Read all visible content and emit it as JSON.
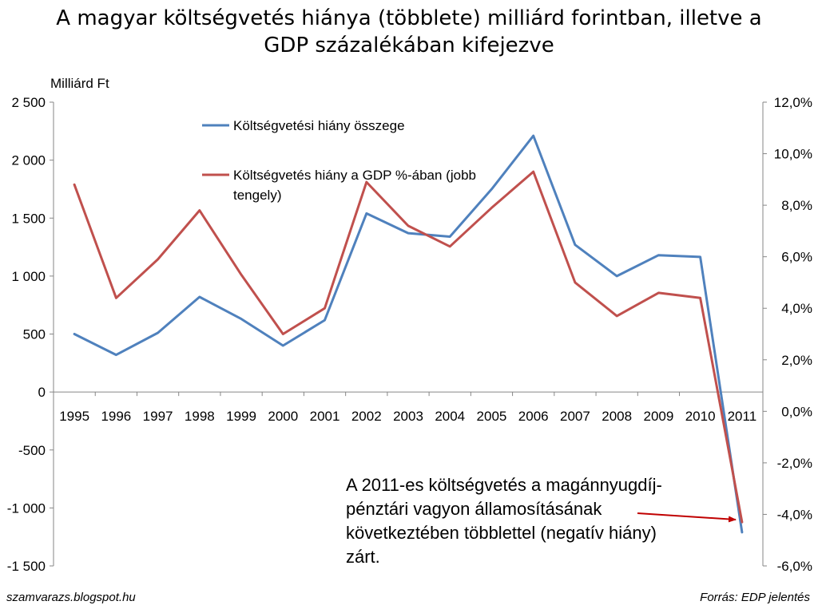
{
  "title": {
    "line1": "A magyar költségvetés hiánya (többlete) milliárd forintban, illetve a",
    "line2": "GDP százalékában kifejezve"
  },
  "footer": {
    "left": "szamvarazs.blogspot.hu",
    "right": "Forrás: EDP jelentés"
  },
  "annotation": {
    "lines": [
      "A 2011-es költségvetés a magánnyugdíj-",
      "pénztári vagyon államosításának",
      "következtében többlettel (negatív hiány)",
      "zárt."
    ]
  },
  "colors": {
    "series_blue": "#4F81BD",
    "series_red": "#C0504D",
    "arrow": "#C00000",
    "axis": "#868686"
  },
  "chart_data": {
    "type": "line",
    "categories": [
      "1995",
      "1996",
      "1997",
      "1998",
      "1999",
      "2000",
      "2001",
      "2002",
      "2003",
      "2004",
      "2005",
      "2006",
      "2007",
      "2008",
      "2009",
      "2010",
      "2011"
    ],
    "series": [
      {
        "name": "Költségvetési hiány összege",
        "axis": "left",
        "values": [
          500,
          320,
          510,
          820,
          630,
          400,
          620,
          1540,
          1370,
          1340,
          1750,
          2210,
          1270,
          1000,
          1180,
          1165,
          -1210
        ]
      },
      {
        "name": "Költségvetés hiány a GDP %-ában (jobb tengely)",
        "axis": "right",
        "values": [
          8.8,
          4.4,
          5.9,
          7.8,
          5.3,
          3.0,
          4.0,
          8.9,
          7.2,
          6.4,
          7.9,
          9.3,
          5.0,
          3.7,
          4.6,
          4.4,
          -4.3
        ]
      }
    ],
    "yaxis_left": {
      "label": "Milliárd Ft",
      "range": [
        -1500,
        2500
      ],
      "ticks": [
        2500,
        2000,
        1500,
        1000,
        500,
        0,
        -500,
        -1000,
        -1500
      ],
      "tick_labels": [
        "2 500",
        "2 000",
        "1 500",
        "1 000",
        "500",
        "0",
        "-500",
        "-1 000",
        "-1 500"
      ]
    },
    "yaxis_right": {
      "range": [
        -6,
        12
      ],
      "ticks": [
        12,
        10,
        8,
        6,
        4,
        2,
        0,
        -2,
        -4,
        -6
      ],
      "tick_labels": [
        "12,0%",
        "10,0%",
        "8,0%",
        "6,0%",
        "4,0%",
        "2,0%",
        "0,0%",
        "-2,0%",
        "-4,0%",
        "-6,0%"
      ]
    },
    "grid": false,
    "legend_position": "top-left inside plot"
  }
}
